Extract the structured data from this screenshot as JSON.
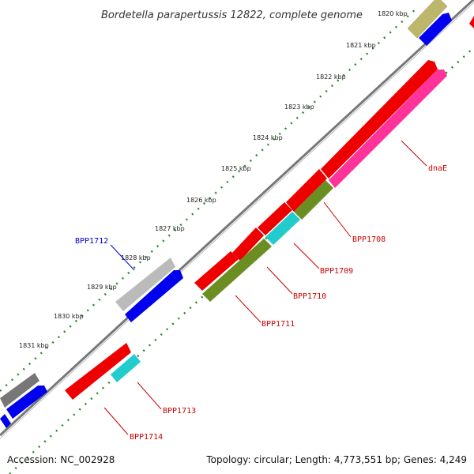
{
  "title": "Bordetella parapertussis 12822, complete genome",
  "footer": {
    "accession": "Accession: NC_002928",
    "topology": "Topology: circular; Length: 4,773,551 bp; Genes: 4,249"
  },
  "kbp_labels": [
    "1820 kbp",
    "1821 kbp",
    "1822 kbp",
    "1823 kbp",
    "1824 kbp",
    "1825 kbp",
    "1826 kbp",
    "1827 kbp",
    "1828 kbp",
    "1829 kbp",
    "1830 kbp",
    "1831 kbp"
  ],
  "gene_labels": [
    {
      "name": "dnaE",
      "color": "#cc0000"
    },
    {
      "name": "BPP1708",
      "color": "#cc0000"
    },
    {
      "name": "BPP1709",
      "color": "#cc0000"
    },
    {
      "name": "BPP1710",
      "color": "#cc0000"
    },
    {
      "name": "BPP1711",
      "color": "#cc0000"
    },
    {
      "name": "BPP1712",
      "color": "#0000cc"
    },
    {
      "name": "BPP1713",
      "color": "#cc0000"
    },
    {
      "name": "BPP1714",
      "color": "#cc0000"
    }
  ],
  "colors": {
    "backbone": "#888888",
    "tick": "#2a8a2a",
    "red": "#ee0000",
    "blue": "#0000ee",
    "olive": "#6b8e23",
    "cyan": "#22cccc",
    "magenta": "#ff3399",
    "gray": "#bbbbbb",
    "darkgray": "#777777",
    "khaki": "#bdb76b"
  }
}
